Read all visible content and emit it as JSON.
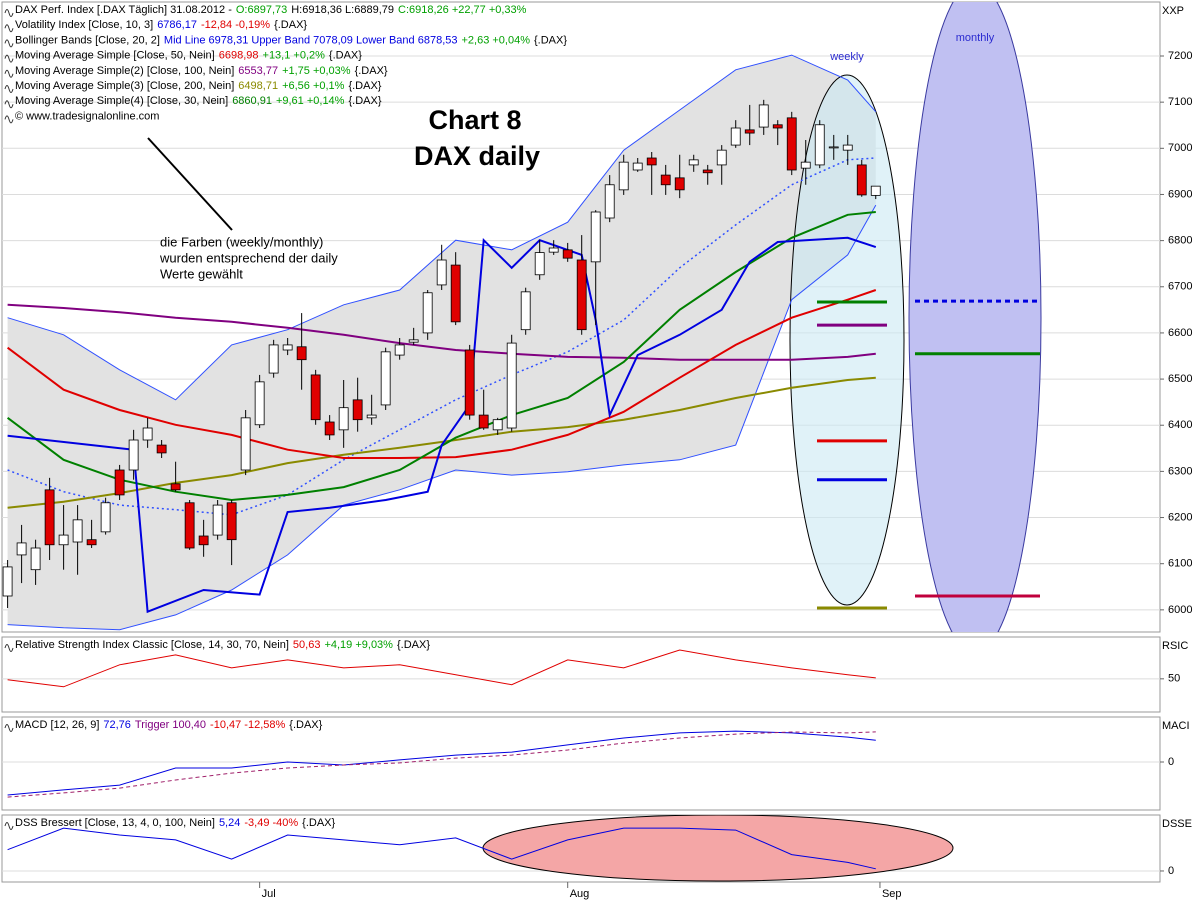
{
  "chart_data": [
    {
      "type": "candlestick",
      "header": [
        [
          {
            "text": "DAX Perf. Index [.DAX  Täglich] 31.08.2012 -",
            "color": "#000000"
          },
          {
            "text": "O:6897,73",
            "color": "#00a000"
          },
          {
            "text": "H:6918,36 L:6889,79",
            "color": "#000000"
          },
          {
            "text": "C:6918,26 +22,77 +0,33%",
            "color": "#00a000"
          }
        ],
        [
          {
            "text": "Volatility Index [Close, 10, 3]",
            "color": "#000000"
          },
          {
            "text": "6786,17",
            "color": "#0000e0"
          },
          {
            "text": "-12,84 -0,19%",
            "color": "#e00000"
          },
          {
            "text": "{.DAX}",
            "color": "#000000"
          }
        ],
        [
          {
            "text": "Bollinger Bands [Close, 20, 2]",
            "color": "#000000"
          },
          {
            "text": "Mid Line 6978,31 Upper Band 7078,09 Lower Band 6878,53",
            "color": "#0000e0"
          },
          {
            "text": "+2,63 +0,04%",
            "color": "#00a000"
          },
          {
            "text": "{.DAX}",
            "color": "#000000"
          }
        ],
        [
          {
            "text": "Moving Average Simple [Close, 50, Nein]",
            "color": "#000000"
          },
          {
            "text": "6698,98",
            "color": "#e00000"
          },
          {
            "text": "+13,1 +0,2%",
            "color": "#00a000"
          },
          {
            "text": "{.DAX}",
            "color": "#000000"
          }
        ],
        [
          {
            "text": "Moving Average Simple(2) [Close, 100, Nein]",
            "color": "#000000"
          },
          {
            "text": "6553,77",
            "color": "#800080"
          },
          {
            "text": "+1,75 +0,03%",
            "color": "#00a000"
          },
          {
            "text": "{.DAX}",
            "color": "#000000"
          }
        ],
        [
          {
            "text": "Moving Average Simple(3) [Close, 200, Nein]",
            "color": "#000000"
          },
          {
            "text": "6498,71",
            "color": "#8a8a00"
          },
          {
            "text": "+6,56 +0,1%",
            "color": "#00a000"
          },
          {
            "text": "{.DAX}",
            "color": "#000000"
          }
        ],
        [
          {
            "text": "Moving Average Simple(4) [Close, 30, Nein]",
            "color": "#000000"
          },
          {
            "text": "6860,91",
            "color": "#008000"
          },
          {
            "text": "+9,61 +0,14%",
            "color": "#00a000"
          },
          {
            "text": "{.DAX}",
            "color": "#000000"
          }
        ],
        [
          {
            "text": "© www.tradesignalonline.com",
            "color": "#000000"
          }
        ]
      ],
      "axis_label": "XXP",
      "xlim": [
        -0.4,
        82.3
      ],
      "xticks": [
        {
          "value": 18,
          "label": "Jul"
        },
        {
          "value": 40,
          "label": "Aug"
        },
        {
          "value": 62.3,
          "label": "Sep"
        }
      ],
      "ylim": [
        5952,
        7317
      ],
      "yticks": [
        6000,
        6100,
        6200,
        6300,
        6400,
        6500,
        6600,
        6700,
        6800,
        6900,
        7000,
        7100,
        7200
      ],
      "grid": true,
      "up_color": "#ffffff",
      "down_color": "#e00000",
      "open": [
        6030,
        6119,
        6087,
        6260,
        6141,
        6147,
        6152,
        6169,
        6303,
        6303,
        6368,
        6357,
        6273,
        6232,
        6160,
        6162,
        6232,
        6303,
        6401,
        6513,
        6563,
        6570,
        6509,
        6407,
        6390,
        6455,
        6416,
        6444,
        6552,
        6580,
        6600,
        6704,
        6747,
        6563,
        6422,
        6390,
        6394,
        6607,
        6726,
        6775,
        6780,
        6758,
        6754,
        6849,
        6910,
        6953,
        6979,
        6942,
        6936,
        6964,
        6953,
        6964,
        7007,
        7040,
        7046,
        7051,
        7066,
        6957,
        6964,
        7001,
        6996,
        6964,
        6898
      ],
      "high": [
        6108,
        6184,
        6152,
        6286,
        6227,
        6227,
        6195,
        6243,
        6314,
        6390,
        6416,
        6368,
        6321,
        6238,
        6195,
        6238,
        6238,
        6433,
        6509,
        6585,
        6589,
        6643,
        6520,
        6422,
        6498,
        6503,
        6466,
        6568,
        6589,
        6611,
        6693,
        6791,
        6775,
        6574,
        6477,
        6416,
        6596,
        6698,
        6801,
        6801,
        6795,
        6812,
        6866,
        6942,
        6986,
        6979,
        6992,
        6964,
        6986,
        6986,
        6964,
        7007,
        7061,
        7094,
        7105,
        7061,
        7079,
        7018,
        7061,
        7029,
        7029,
        6975,
        6918
      ],
      "low": [
        6004,
        6058,
        6054,
        6108,
        6087,
        6076,
        6134,
        6163,
        6238,
        6282,
        6351,
        6329,
        6256,
        6130,
        6115,
        6152,
        6097,
        6292,
        6394,
        6503,
        6552,
        6477,
        6401,
        6368,
        6351,
        6386,
        6401,
        6433,
        6542,
        6574,
        6585,
        6693,
        6617,
        6412,
        6390,
        6379,
        6386,
        6596,
        6715,
        6769,
        6754,
        6596,
        6617,
        6840,
        6899,
        6949,
        6899,
        6899,
        6892,
        6949,
        6921,
        6921,
        7001,
        7007,
        7029,
        7007,
        6942,
        6921,
        6957,
        6975,
        6964,
        6895,
        6890
      ],
      "close": [
        6093,
        6145,
        6134,
        6141,
        6162,
        6195,
        6141,
        6232,
        6249,
        6368,
        6394,
        6340,
        6260,
        6134,
        6141,
        6227,
        6152,
        6416,
        6494,
        6574,
        6574,
        6542,
        6412,
        6379,
        6438,
        6412,
        6422,
        6559,
        6574,
        6585,
        6687,
        6758,
        6624,
        6422,
        6394,
        6412,
        6578,
        6689,
        6774,
        6784,
        6762,
        6607,
        6862,
        6921,
        6970,
        6968,
        6964,
        6921,
        6910,
        6975,
        6947,
        6996,
        7044,
        7033,
        7094,
        7044,
        6953,
        6970,
        7051,
        7003,
        7007,
        6899,
        6918
      ],
      "band": {
        "color": "#3050ff",
        "fill": "#e2e2e2",
        "x": [
          0,
          4,
          8,
          12,
          16,
          20,
          24,
          28,
          32,
          36,
          40,
          44,
          48,
          52,
          56,
          60,
          62
        ],
        "upper": [
          6633,
          6596,
          6520,
          6455,
          6574,
          6607,
          6661,
          6693,
          6801,
          6780,
          6840,
          6996,
          7083,
          7170,
          7202,
          7148,
          7079
        ],
        "lower": [
          5968,
          5961,
          5957,
          5989,
          6043,
          6119,
          6227,
          6260,
          6303,
          6292,
          6299,
          6314,
          6325,
          6357,
          6672,
          6769,
          6877
        ],
        "mid": [
          6303,
          6256,
          6227,
          6217,
          6206,
          6249,
          6325,
          6390,
          6455,
          6509,
          6559,
          6628,
          6741,
          6834,
          6921,
          6975,
          6979
        ]
      },
      "series": [
        {
          "color": "#8a8a00",
          "x": [
            0,
            4,
            8,
            12,
            16,
            20,
            24,
            28,
            32,
            36,
            40,
            44,
            48,
            52,
            56,
            60,
            62
          ],
          "values": [
            6221,
            6234,
            6253,
            6275,
            6292,
            6318,
            6336,
            6351,
            6368,
            6386,
            6396,
            6412,
            6433,
            6459,
            6481,
            6498,
            6503
          ]
        },
        {
          "color": "#800080",
          "x": [
            0,
            4,
            8,
            12,
            16,
            20,
            24,
            28,
            32,
            36,
            40,
            44,
            48,
            52,
            56,
            60,
            62
          ],
          "values": [
            6661,
            6654,
            6645,
            6633,
            6624,
            6611,
            6596,
            6578,
            6563,
            6555,
            6548,
            6546,
            6542,
            6542,
            6542,
            6548,
            6555
          ]
        },
        {
          "color": "#e00000",
          "x": [
            0,
            4,
            8,
            12,
            16,
            20,
            24,
            28,
            32,
            36,
            40,
            44,
            48,
            52,
            56,
            60,
            62
          ],
          "values": [
            6568,
            6477,
            6433,
            6401,
            6379,
            6347,
            6329,
            6329,
            6331,
            6347,
            6379,
            6429,
            6503,
            6574,
            6633,
            6672,
            6693
          ]
        },
        {
          "color": "#008000",
          "x": [
            0,
            4,
            8,
            12,
            16,
            20,
            24,
            28,
            32,
            36,
            40,
            44,
            48,
            52,
            56,
            60,
            62
          ],
          "values": [
            6416,
            6325,
            6282,
            6256,
            6238,
            6249,
            6266,
            6303,
            6373,
            6422,
            6459,
            6537,
            6650,
            6732,
            6806,
            6856,
            6862
          ]
        },
        {
          "color": "#0000e0",
          "x": [
            0,
            9,
            10,
            14,
            18,
            20,
            23,
            27,
            30,
            31,
            33,
            34,
            36,
            38,
            41,
            42,
            43,
            45,
            48,
            51,
            53,
            55,
            57,
            60,
            62
          ],
          "values": [
            6377,
            6347,
            5996,
            6043,
            6033,
            6212,
            6221,
            6238,
            6256,
            6357,
            6444,
            6801,
            6741,
            6801,
            6769,
            6628,
            6422,
            6552,
            6596,
            6650,
            6754,
            6797,
            6801,
            6806,
            6786
          ]
        }
      ],
      "annotations": [
        {
          "text": "Chart 8"
        },
        {
          "text": "DAX daily"
        },
        {
          "text": "die Farben (weekly/monthly)"
        },
        {
          "text": "wurden entsprechend der daily"
        },
        {
          "text": "Werte gewählt"
        },
        {
          "text": "weekly",
          "levels": [
            {
              "value": 6667,
              "color": "#008000"
            },
            {
              "value": 6617,
              "color": "#800080"
            },
            {
              "value": 6366,
              "color": "#e00000"
            },
            {
              "value": 6282,
              "color": "#0000e0"
            },
            {
              "value": 6004,
              "color": "#8a8a00"
            }
          ]
        },
        {
          "text": "monthly",
          "levels": [
            {
              "value": 6669,
              "color": "#0000e0",
              "dashed": true
            },
            {
              "value": 6555,
              "color": "#008000"
            },
            {
              "value": 6030,
              "color": "#c0003c"
            }
          ]
        }
      ]
    },
    {
      "type": "line",
      "header": [
        [
          {
            "text": "Relative Strength Index Classic [Close, 14, 30, 70, Nein]",
            "color": "#000000"
          },
          {
            "text": "50,63",
            "color": "#e00000"
          },
          {
            "text": "+4,19 +9,03%",
            "color": "#00a000"
          },
          {
            "text": "{.DAX}",
            "color": "#000000"
          }
        ]
      ],
      "axis_label": "RSIC",
      "ylim": [
        27,
        79
      ],
      "yticks": [
        50
      ],
      "grid": true,
      "series": [
        {
          "color": "#e00000",
          "x": [
            0,
            4,
            8,
            12,
            16,
            20,
            24,
            28,
            32,
            36,
            40,
            44,
            48,
            52,
            56,
            60,
            62
          ],
          "values": [
            49.3,
            44.5,
            59.7,
            66.6,
            57.6,
            63.1,
            57.6,
            59.7,
            52.8,
            45.9,
            63.1,
            57.6,
            70,
            63.1,
            57.6,
            52.8,
            50.63
          ]
        }
      ]
    },
    {
      "type": "line",
      "header": [
        [
          {
            "text": "MACD [12, 26, 9]",
            "color": "#000000"
          },
          {
            "text": "72,76",
            "color": "#0000e0"
          },
          {
            "text": "Trigger 100,40",
            "color": "#800080"
          },
          {
            "text": "-10,47 -12,58%",
            "color": "#e00000"
          },
          {
            "text": "{.DAX}",
            "color": "#000000"
          }
        ]
      ],
      "axis_label": "MACI",
      "ylim": [
        -160,
        150
      ],
      "yticks": [
        0
      ],
      "grid": true,
      "series": [
        {
          "color": "#0000e0",
          "x": [
            0,
            4,
            8,
            12,
            16,
            20,
            24,
            28,
            32,
            36,
            40,
            44,
            48,
            52,
            56,
            60,
            62
          ],
          "values": [
            -110,
            -93,
            -77,
            -20,
            -20,
            0,
            -10,
            7,
            23,
            33,
            57,
            80,
            97,
            103,
            97,
            83,
            72.76
          ]
        },
        {
          "color": "#a0206a",
          "dashed": true,
          "x": [
            0,
            4,
            8,
            12,
            16,
            20,
            24,
            28,
            32,
            36,
            40,
            44,
            48,
            52,
            56,
            60,
            62
          ],
          "values": [
            -117,
            -103,
            -87,
            -60,
            -37,
            -20,
            -10,
            -3,
            13,
            23,
            40,
            63,
            80,
            93,
            100,
            97,
            100.4
          ]
        }
      ]
    },
    {
      "type": "line",
      "header": [
        [
          {
            "text": "DSS Bressert [Close, 13, 4, 0, 100, Nein]",
            "color": "#000000"
          },
          {
            "text": "5,24",
            "color": "#0000e0"
          },
          {
            "text": "-3,49 -40%",
            "color": "#e00000"
          },
          {
            "text": "{.DAX}",
            "color": "#000000"
          }
        ]
      ],
      "axis_label": "DSSE",
      "ylim": [
        -27,
        137
      ],
      "yticks": [
        0
      ],
      "grid": true,
      "series": [
        {
          "color": "#0000e0",
          "x": [
            0,
            4,
            8,
            12,
            16,
            20,
            24,
            28,
            32,
            36,
            40,
            44,
            48,
            52,
            56,
            60,
            62
          ],
          "values": [
            52,
            105,
            88,
            76,
            29,
            88,
            76,
            64,
            81,
            29,
            76,
            105,
            105,
            100,
            40,
            21,
            5.24
          ]
        }
      ]
    }
  ]
}
